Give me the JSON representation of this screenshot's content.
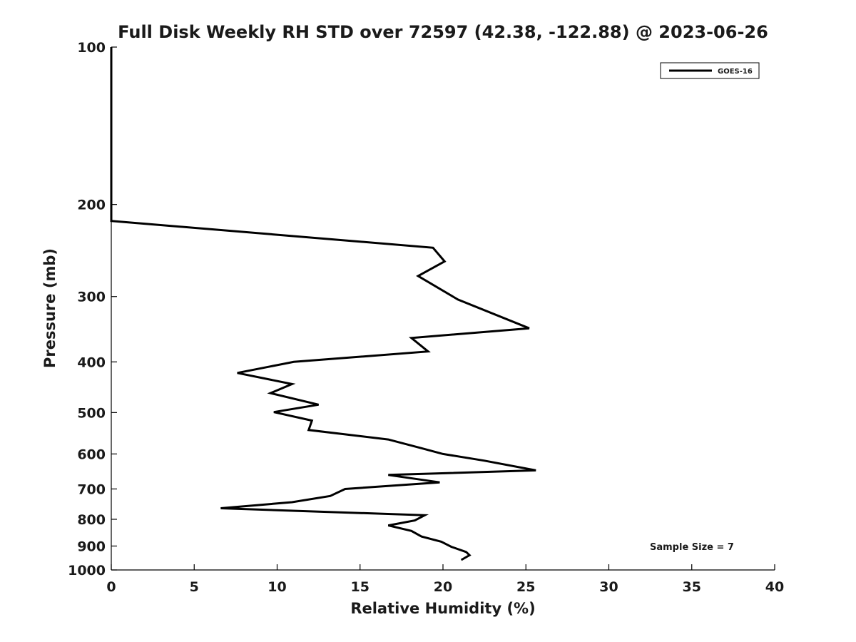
{
  "chart_data": {
    "type": "line",
    "title": "Full Disk Weekly RH STD over 72597 (42.38, -122.88) @ 2023-06-26",
    "xlabel": "Relative Humidity (%)",
    "ylabel": "Pressure (mb)",
    "xlim": [
      0,
      40
    ],
    "ylim": [
      100,
      1000
    ],
    "yscale": "log",
    "y_inverted": true,
    "xticks": [
      0,
      5,
      10,
      15,
      20,
      25,
      30,
      35,
      40
    ],
    "yticks": [
      100,
      200,
      300,
      400,
      500,
      600,
      700,
      800,
      900,
      1000
    ],
    "grid": false,
    "legend_position": "top-right",
    "line_color": "#000000",
    "annotation": "Sample Size = 7",
    "series": [
      {
        "name": "GOES-16",
        "points": [
          [
            0,
            100
          ],
          [
            0,
            150
          ],
          [
            0,
            200
          ],
          [
            0,
            215
          ],
          [
            19.4,
            242
          ],
          [
            20.1,
            257
          ],
          [
            18.5,
            274
          ],
          [
            20.9,
            304
          ],
          [
            25.2,
            345
          ],
          [
            18.1,
            360
          ],
          [
            19.1,
            382
          ],
          [
            11.0,
            400
          ],
          [
            7.6,
            420
          ],
          [
            10.9,
            441
          ],
          [
            9.6,
            459
          ],
          [
            12.5,
            483
          ],
          [
            9.8,
            499
          ],
          [
            12.1,
            518
          ],
          [
            11.9,
            540
          ],
          [
            16.7,
            563
          ],
          [
            18.7,
            585
          ],
          [
            20.0,
            600
          ],
          [
            22.5,
            618
          ],
          [
            25.6,
            645
          ],
          [
            16.7,
            658
          ],
          [
            19.8,
            680
          ],
          [
            14.1,
            700
          ],
          [
            13.2,
            722
          ],
          [
            10.9,
            742
          ],
          [
            6.6,
            762
          ],
          [
            18.9,
            786
          ],
          [
            18.3,
            804
          ],
          [
            16.7,
            822
          ],
          [
            18.1,
            842
          ],
          [
            18.7,
            863
          ],
          [
            19.9,
            883
          ],
          [
            20.5,
            903
          ],
          [
            21.4,
            924
          ],
          [
            21.6,
            937
          ],
          [
            21.1,
            957
          ]
        ]
      }
    ]
  }
}
